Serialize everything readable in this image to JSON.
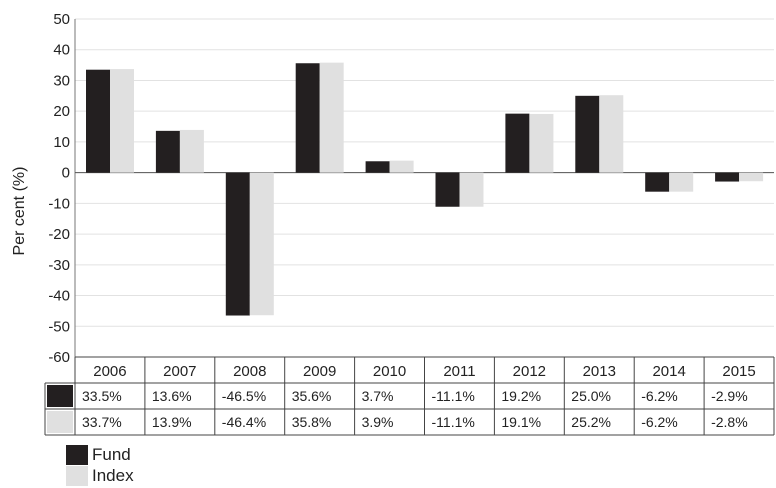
{
  "chart_data": {
    "type": "bar",
    "title": "",
    "xlabel": "",
    "ylabel": "Per cent (%)",
    "ylim": [
      -60,
      50
    ],
    "yticks": [
      50,
      40,
      30,
      20,
      10,
      0,
      -10,
      -20,
      -30,
      -40,
      -50,
      -60
    ],
    "grid": true,
    "legend": "bottom-left",
    "categories": [
      "2006",
      "2007",
      "2008",
      "2009",
      "2010",
      "2011",
      "2012",
      "2013",
      "2014",
      "2015"
    ],
    "series": [
      {
        "name": "Fund",
        "color": "#231f20",
        "values": [
          33.5,
          13.6,
          -46.5,
          35.6,
          3.7,
          -11.1,
          19.2,
          25.0,
          -6.2,
          -2.9
        ],
        "labels": [
          "33.5%",
          "13.6%",
          "-46.5%",
          "35.6%",
          "3.7%",
          "-11.1%",
          "19.2%",
          "25.0%",
          "-6.2%",
          "-2.9%"
        ]
      },
      {
        "name": "Index",
        "color": "#e0e0e0",
        "values": [
          33.7,
          13.9,
          -46.4,
          35.8,
          3.9,
          -11.1,
          19.1,
          25.2,
          -6.2,
          -2.8
        ],
        "labels": [
          "33.7%",
          "13.9%",
          "-46.4%",
          "35.8%",
          "3.9%",
          "-11.1%",
          "19.1%",
          "25.2%",
          "-6.2%",
          "-2.8%"
        ]
      }
    ]
  }
}
